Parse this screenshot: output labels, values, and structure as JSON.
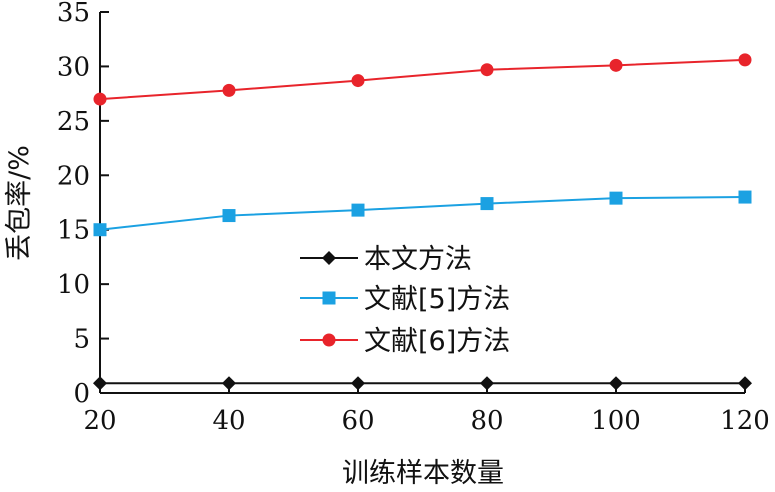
{
  "chart_data": {
    "type": "line",
    "title": "",
    "xlabel": "训练样本数量",
    "ylabel": "丢包率/%",
    "x": [
      20,
      40,
      60,
      80,
      100,
      120
    ],
    "xlim": [
      20,
      120
    ],
    "ylim": [
      0,
      35
    ],
    "xticks": [
      "20",
      "40",
      "60",
      "80",
      "100",
      "120"
    ],
    "yticks": [
      "0",
      "5",
      "10",
      "15",
      "20",
      "25",
      "30",
      "35"
    ],
    "grid": false,
    "legend_position": "center",
    "series": [
      {
        "name": "本文方法",
        "marker": "diamond",
        "color": "#111111",
        "values": [
          0.9,
          0.9,
          0.9,
          0.9,
          0.9,
          0.9
        ]
      },
      {
        "name": "文献[5]方法",
        "marker": "square",
        "color": "#1ba1e2",
        "values": [
          15.0,
          16.3,
          16.8,
          17.4,
          17.9,
          18.0
        ]
      },
      {
        "name": "文献[6]方法",
        "marker": "circle",
        "color": "#e8242b",
        "values": [
          27.0,
          27.8,
          28.7,
          29.7,
          30.1,
          30.6
        ]
      }
    ]
  }
}
